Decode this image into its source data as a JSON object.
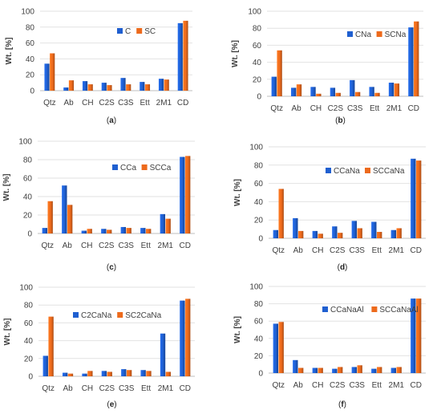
{
  "chart_data": [
    {
      "type": "bar",
      "panel_label": "(a)",
      "ylabel": "Wt. [%]",
      "ylim": [
        0,
        100
      ],
      "yticks": [
        "0",
        "20",
        "40",
        "60",
        "80",
        "100"
      ],
      "grid": true,
      "legend_position": "top-right",
      "categories": [
        "Qtz",
        "Ab",
        "CH",
        "C2S",
        "C3S",
        "Ett",
        "2M1",
        "CD"
      ],
      "series": [
        {
          "name": "C",
          "color": "#1f5fd0",
          "values": [
            34,
            4,
            12,
            10,
            16,
            11,
            15,
            85
          ]
        },
        {
          "name": "SC",
          "color": "#ed6a1c",
          "values": [
            47,
            13,
            8,
            7,
            8,
            8,
            14,
            88
          ]
        }
      ]
    },
    {
      "type": "bar",
      "panel_label": "(b)",
      "ylabel": "Wt. [%]",
      "ylim": [
        0,
        100
      ],
      "yticks": [
        "0",
        "20",
        "40",
        "60",
        "80",
        "100"
      ],
      "grid": true,
      "legend_position": "top-right",
      "categories": [
        "Qtz",
        "Ab",
        "CH",
        "C2S",
        "C3S",
        "Ett",
        "2M1",
        "CD"
      ],
      "series": [
        {
          "name": "CNa",
          "color": "#1f5fd0",
          "values": [
            23,
            10,
            11,
            10,
            19,
            11,
            16,
            81
          ]
        },
        {
          "name": "SCNa",
          "color": "#ed6a1c",
          "values": [
            54,
            14,
            3,
            4,
            5,
            4,
            15,
            88
          ]
        }
      ]
    },
    {
      "type": "bar",
      "panel_label": "(c)",
      "ylabel": "Wt. [%]",
      "ylim": [
        0,
        100
      ],
      "yticks": [
        "0",
        "20",
        "40",
        "60",
        "80",
        "100"
      ],
      "grid": true,
      "legend_position": "top-right",
      "categories": [
        "Qtz",
        "Ab",
        "CH",
        "C2S",
        "C3S",
        "Ett",
        "2M1",
        "CD"
      ],
      "series": [
        {
          "name": "CCa",
          "color": "#1f5fd0",
          "values": [
            6,
            52,
            3,
            5,
            7,
            6,
            21,
            83
          ]
        },
        {
          "name": "SCCa",
          "color": "#ed6a1c",
          "values": [
            35,
            31,
            5,
            4,
            6,
            5,
            16,
            84
          ]
        }
      ]
    },
    {
      "type": "bar",
      "panel_label": "(d)",
      "ylabel": "Wt. [%]",
      "ylim": [
        0,
        100
      ],
      "yticks": [
        "0",
        "20",
        "40",
        "60",
        "80",
        "100"
      ],
      "grid": true,
      "legend_position": "top-right",
      "categories": [
        "Qtz",
        "Ab",
        "CH",
        "C2S",
        "C3S",
        "Ett",
        "2M1",
        "CD"
      ],
      "series": [
        {
          "name": "CCaNa",
          "color": "#1f5fd0",
          "values": [
            9,
            22,
            8,
            13,
            19,
            18,
            9,
            87
          ]
        },
        {
          "name": "SCCaNa",
          "color": "#ed6a1c",
          "values": [
            54,
            8,
            5,
            6,
            11,
            7,
            11,
            85
          ]
        }
      ]
    },
    {
      "type": "bar",
      "panel_label": "(e)",
      "ylabel": "Wt. [%]",
      "ylim": [
        0,
        100
      ],
      "yticks": [
        "0",
        "20",
        "40",
        "60",
        "80",
        "100"
      ],
      "grid": true,
      "legend_position": "top-right",
      "categories": [
        "Qtz",
        "Ab",
        "CH",
        "C2S",
        "C3S",
        "Ett",
        "2M1",
        "CD"
      ],
      "series": [
        {
          "name": "C2CaNa",
          "color": "#1f5fd0",
          "values": [
            23,
            4,
            3,
            6,
            8,
            7,
            48,
            85
          ]
        },
        {
          "name": "SC2CaNa",
          "color": "#ed6a1c",
          "values": [
            67,
            3,
            6,
            5,
            7,
            6,
            5,
            87
          ]
        }
      ]
    },
    {
      "type": "bar",
      "panel_label": "(f)",
      "ylabel": "Wt. [%]",
      "ylim": [
        0,
        100
      ],
      "yticks": [
        "0",
        "20",
        "40",
        "60",
        "80",
        "100"
      ],
      "grid": true,
      "legend_position": "top-right",
      "categories": [
        "Qtz",
        "Ab",
        "CH",
        "C2S",
        "C3S",
        "Ett",
        "2M1",
        "CD"
      ],
      "series": [
        {
          "name": "CCaNaAl",
          "color": "#1f5fd0",
          "values": [
            57,
            15,
            6,
            5,
            7,
            5,
            6,
            86
          ]
        },
        {
          "name": "SCCaNaAl",
          "color": "#ed6a1c",
          "values": [
            59,
            6,
            6,
            7,
            9,
            7,
            7,
            86
          ]
        }
      ]
    }
  ]
}
